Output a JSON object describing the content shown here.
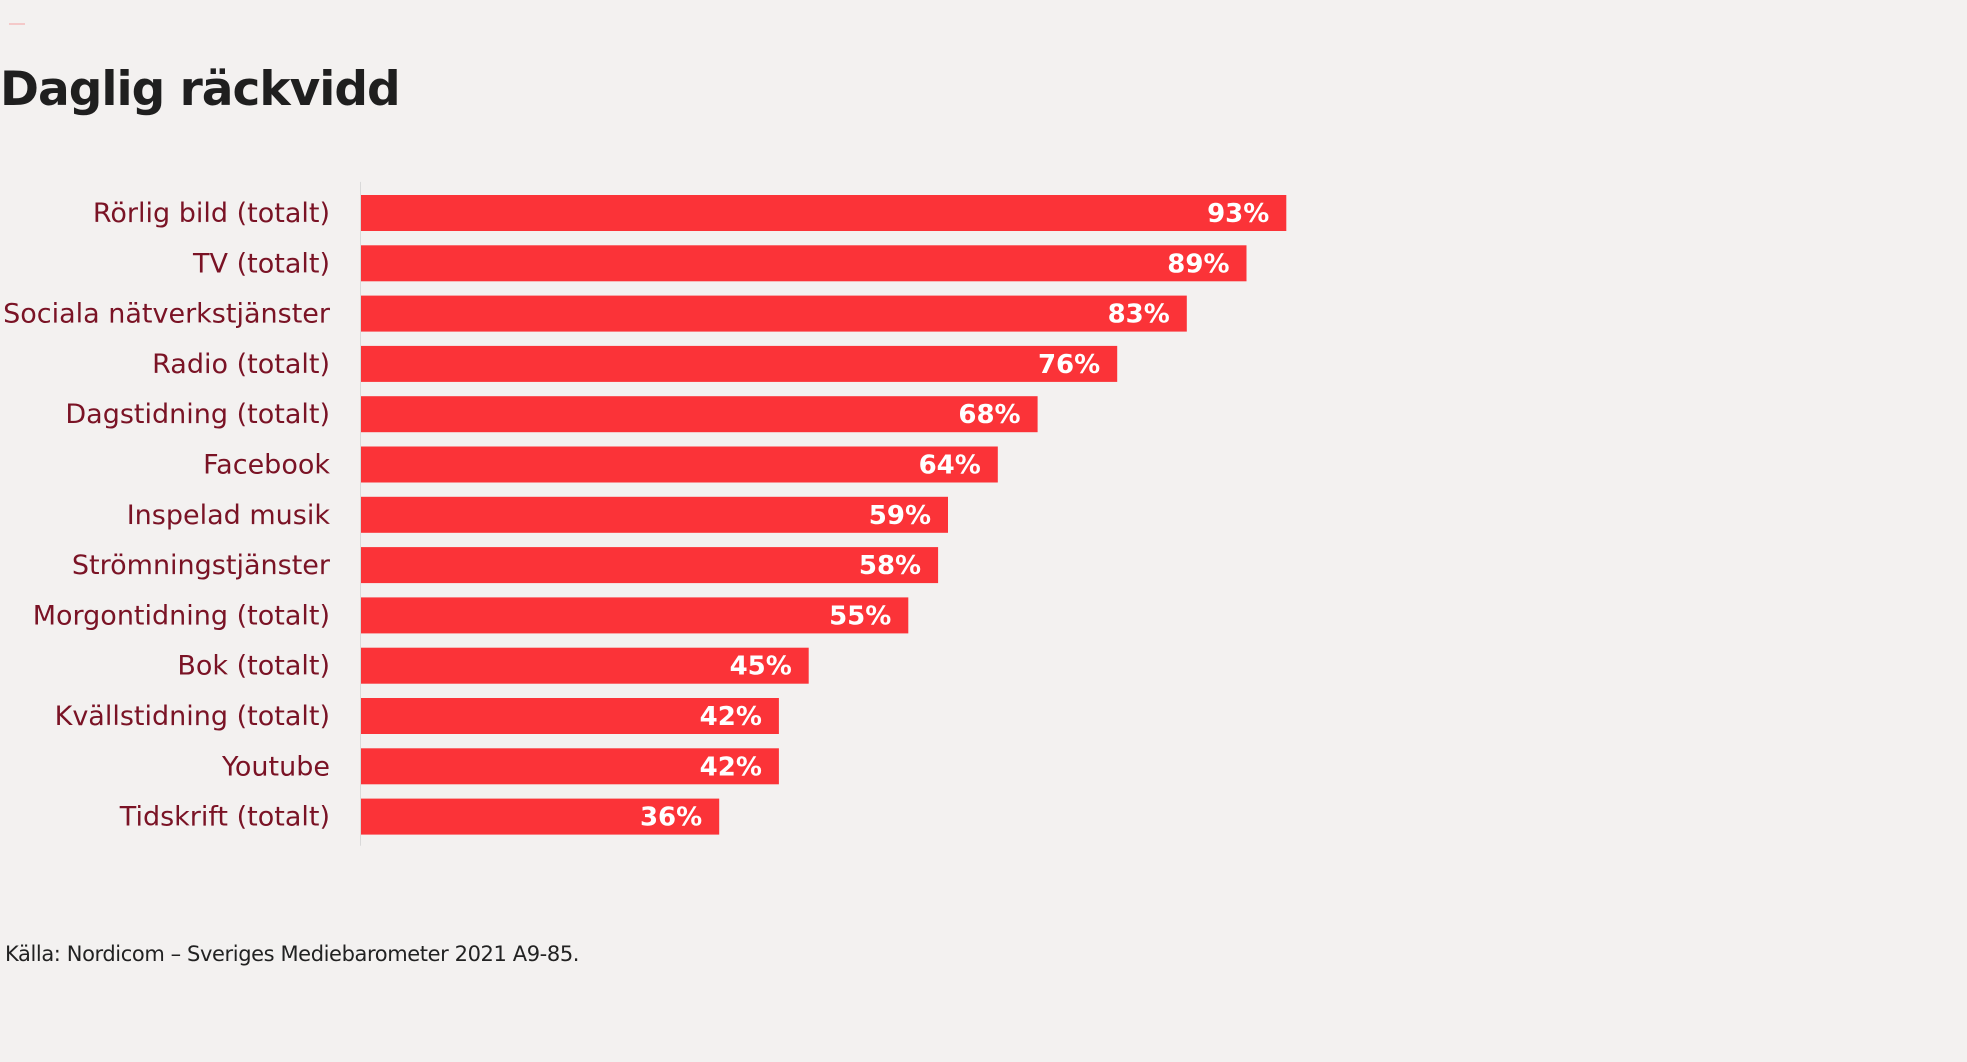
{
  "colors": {
    "background": "#f3f1f0",
    "bar": "#fb3338",
    "category_text": "#7a1325",
    "value_text": "#ffffff",
    "title_text": "#1f1f1f",
    "axis_line": "#d9d9d9"
  },
  "chart_data": {
    "type": "bar",
    "orientation": "horizontal",
    "title": "Daglig räckvidd",
    "xlabel": "",
    "ylabel": "",
    "xlim": [
      0,
      100
    ],
    "grid": false,
    "legend": "none",
    "categories": [
      "Rörlig bild (totalt)",
      "TV (totalt)",
      "Sociala nätverkstjänster",
      "Radio (totalt)",
      "Dagstidning (totalt)",
      "Facebook",
      "Inspelad musik",
      "Strömningstjänster",
      "Morgontidning (totalt)",
      "Bok (totalt)",
      "Kvällstidning (totalt)",
      "Youtube",
      "Tidskrift (totalt)"
    ],
    "values": [
      93,
      89,
      83,
      76,
      68,
      64,
      59,
      58,
      55,
      45,
      42,
      42,
      36
    ],
    "value_labels": [
      "93%",
      "89%",
      "83%",
      "76%",
      "68%",
      "64%",
      "59%",
      "58%",
      "55%",
      "45%",
      "42%",
      "42%",
      "36%"
    ],
    "source": "Källa: Nordicom – Sveriges Mediebarometer 2021 A9-85."
  }
}
